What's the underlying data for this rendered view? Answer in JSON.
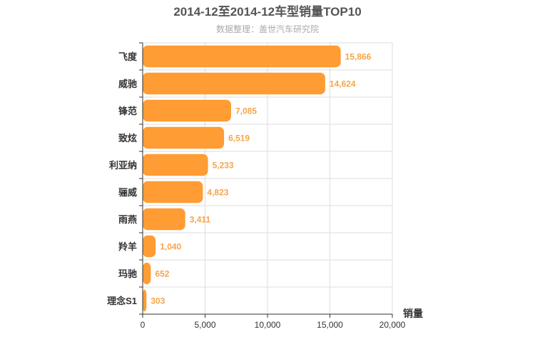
{
  "chart_data": {
    "type": "bar",
    "orientation": "horizontal",
    "title": "2014-12至2014-12车型销量TOP10",
    "subtitle": "数据整理：盖世汽车研究院",
    "xlabel": "销量",
    "ylabel": "",
    "categories": [
      "飞度",
      "威驰",
      "锋范",
      "致炫",
      "利亚纳",
      "骊威",
      "雨燕",
      "羚羊",
      "玛驰",
      "理念S1"
    ],
    "values": [
      15866,
      14624,
      7085,
      6519,
      5233,
      4823,
      3411,
      1040,
      652,
      303
    ],
    "value_labels": [
      "15,866",
      "14,624",
      "7,085",
      "6,519",
      "5,233",
      "4,823",
      "3,411",
      "1,040",
      "652",
      "303"
    ],
    "xlim": [
      0,
      20000
    ],
    "xticks": [
      0,
      5000,
      10000,
      15000,
      20000
    ],
    "xtick_labels": [
      "0",
      "5,000",
      "10,000",
      "15,000",
      "20,000"
    ],
    "grid": true,
    "legend": "none",
    "colors": {
      "bar": "#ff9c33",
      "value_label": "#f6a54a",
      "grid": "#dddddd",
      "axis": "#333333"
    }
  }
}
